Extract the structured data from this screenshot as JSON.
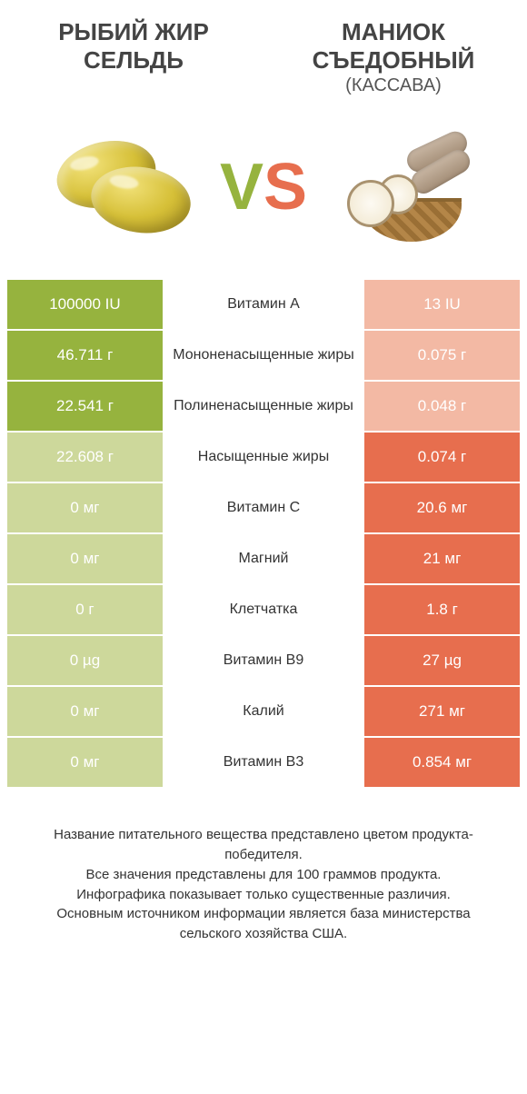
{
  "colors": {
    "left_strong": "#96b33e",
    "left_pale": "#cdd89b",
    "right_strong": "#e76e4e",
    "right_pale": "#f3b9a4",
    "vs_v": "#96b33e",
    "vs_s": "#e76e4e"
  },
  "header": {
    "left_line1": "РЫБИЙ ЖИР",
    "left_line2": "СЕЛЬДЬ",
    "right_line1": "МАНИОК",
    "right_line2": "СЪЕДОБНЫЙ",
    "right_sub": "(КАССАВА)"
  },
  "vs": {
    "v": "V",
    "s": "S"
  },
  "rows": [
    {
      "left": "100000 IU",
      "label": "Витамин A",
      "right": "13 IU",
      "winner": "left"
    },
    {
      "left": "46.711 г",
      "label": "Мононенасыщенные жиры",
      "right": "0.075 г",
      "winner": "left"
    },
    {
      "left": "22.541 г",
      "label": "Полиненасыщенные жиры",
      "right": "0.048 г",
      "winner": "left"
    },
    {
      "left": "22.608 г",
      "label": "Насыщенные жиры",
      "right": "0.074 г",
      "winner": "right"
    },
    {
      "left": "0 мг",
      "label": "Витамин C",
      "right": "20.6 мг",
      "winner": "right"
    },
    {
      "left": "0 мг",
      "label": "Магний",
      "right": "21 мг",
      "winner": "right"
    },
    {
      "left": "0 г",
      "label": "Клетчатка",
      "right": "1.8 г",
      "winner": "right"
    },
    {
      "left": "0 µg",
      "label": "Витамин B9",
      "right": "27 µg",
      "winner": "right"
    },
    {
      "left": "0 мг",
      "label": "Калий",
      "right": "271 мг",
      "winner": "right"
    },
    {
      "left": "0 мг",
      "label": "Витамин B3",
      "right": "0.854 мг",
      "winner": "right"
    }
  ],
  "footer": {
    "line1": "Название питательного вещества представлено цветом продукта-победителя.",
    "line2": "Все значения представлены для 100 граммов продукта.",
    "line3": "Инфографика показывает только существенные различия.",
    "line4": "Основным источником информации является база министерства сельского хозяйства США."
  }
}
